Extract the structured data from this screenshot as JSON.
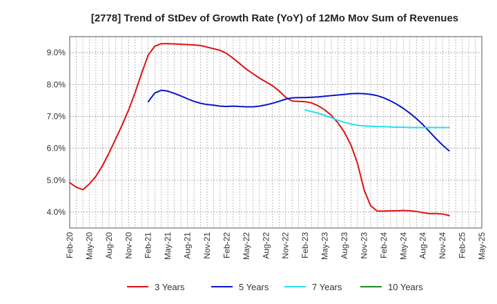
{
  "chart_data": {
    "type": "line",
    "title": "[2778]  Trend of StDev of Growth Rate (YoY) of 12Mo Mov Sum of Revenues",
    "xlabel": "",
    "ylabel": "",
    "ylim": [
      3.5,
      9.5
    ],
    "yticks": [
      4.0,
      5.0,
      6.0,
      7.0,
      8.0,
      9.0
    ],
    "ytick_labels": [
      "4.0%",
      "5.0%",
      "6.0%",
      "7.0%",
      "8.0%",
      "9.0%"
    ],
    "x_start": "Feb-20",
    "x_months": 63,
    "xtick_labels": [
      "Feb-20",
      "May-20",
      "Aug-20",
      "Nov-20",
      "Feb-21",
      "May-21",
      "Aug-21",
      "Nov-21",
      "Feb-22",
      "May-22",
      "Aug-22",
      "Nov-22",
      "Feb-23",
      "May-23",
      "Aug-23",
      "Nov-23",
      "Feb-24",
      "May-24",
      "Aug-24",
      "Nov-24",
      "Feb-25",
      "May-25"
    ],
    "grid": true,
    "legend_position": "bottom",
    "series": [
      {
        "name": "3 Years",
        "color": "#dd1111",
        "start_index": 0,
        "values": [
          4.92,
          4.78,
          4.7,
          4.88,
          5.12,
          5.45,
          5.85,
          6.28,
          6.72,
          7.2,
          7.75,
          8.35,
          8.92,
          9.2,
          9.28,
          9.28,
          9.27,
          9.26,
          9.25,
          9.24,
          9.22,
          9.17,
          9.12,
          9.07,
          8.97,
          8.82,
          8.65,
          8.48,
          8.34,
          8.2,
          8.08,
          7.96,
          7.8,
          7.6,
          7.48,
          7.47,
          7.46,
          7.42,
          7.33,
          7.2,
          7.03,
          6.8,
          6.5,
          6.1,
          5.52,
          4.7,
          4.2,
          4.03,
          4.03,
          4.04,
          4.04,
          4.05,
          4.04,
          4.02,
          3.98,
          3.95,
          3.95,
          3.94,
          3.89
        ]
      },
      {
        "name": "5 Years",
        "color": "#0a14c8",
        "start_index": 12,
        "values": [
          7.46,
          7.73,
          7.82,
          7.79,
          7.72,
          7.64,
          7.55,
          7.47,
          7.41,
          7.37,
          7.35,
          7.32,
          7.31,
          7.32,
          7.31,
          7.3,
          7.3,
          7.32,
          7.36,
          7.41,
          7.47,
          7.54,
          7.58,
          7.59,
          7.59,
          7.6,
          7.61,
          7.63,
          7.65,
          7.67,
          7.69,
          7.71,
          7.72,
          7.71,
          7.69,
          7.65,
          7.58,
          7.49,
          7.38,
          7.25,
          7.1,
          6.93,
          6.74,
          6.52,
          6.3,
          6.1,
          5.92
        ]
      },
      {
        "name": "7 Years",
        "color": "#22e0ea",
        "start_index": 36,
        "values": [
          7.2,
          7.15,
          7.1,
          7.03,
          6.96,
          6.88,
          6.81,
          6.76,
          6.72,
          6.7,
          6.69,
          6.68,
          6.68,
          6.67,
          6.66,
          6.66,
          6.65,
          6.65,
          6.65,
          6.65,
          6.65,
          6.65,
          6.65
        ]
      },
      {
        "name": "10 Years",
        "color": "#1a8a1a",
        "start_index": 0,
        "values": []
      }
    ]
  }
}
